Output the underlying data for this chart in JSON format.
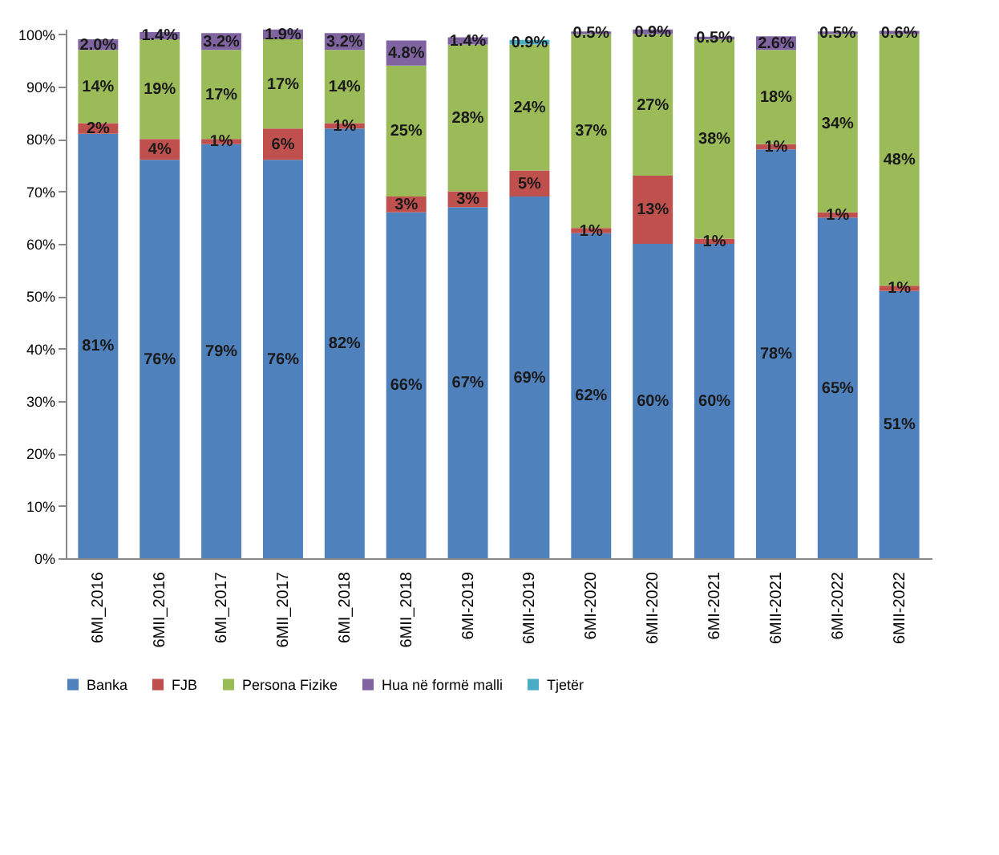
{
  "chart_data": {
    "type": "bar",
    "stacked": true,
    "categories": [
      "6MI_2016",
      "6MII_2016",
      "6MI_2017",
      "6MII_2017",
      "6MI_2018",
      "6MII_2018",
      "6MI-2019",
      "6MII-2019",
      "6MI-2020",
      "6MII-2020",
      "6MI-2021",
      "6MII-2021",
      "6MI-2022",
      "6MII-2022"
    ],
    "series": [
      {
        "name": "Banka",
        "color": "#4f81bd",
        "values": [
          81,
          76,
          79,
          76,
          82,
          66,
          67,
          69,
          62,
          60,
          60,
          78,
          65,
          51
        ],
        "value_labels": [
          "81%",
          "76%",
          "79%",
          "76%",
          "82%",
          "66%",
          "67%",
          "69%",
          "62%",
          "60%",
          "60%",
          "78%",
          "65%",
          "51%"
        ]
      },
      {
        "name": "FJB",
        "color": "#c0504d",
        "values": [
          2,
          4,
          1,
          6,
          1,
          3,
          3,
          5,
          1,
          13,
          1,
          1,
          1,
          1
        ],
        "value_labels": [
          "2%",
          "4%",
          "1%",
          "6%",
          "1%",
          "3%",
          "3%",
          "5%",
          "1%",
          "13%",
          "1%",
          "1%",
          "1%",
          "1%"
        ]
      },
      {
        "name": "Persona Fizike",
        "color": "#9bbb59",
        "values": [
          14,
          19,
          17,
          17,
          14,
          25,
          28,
          24,
          37,
          27,
          38,
          18,
          34,
          48
        ],
        "value_labels": [
          "14%",
          "19%",
          "17%",
          "17%",
          "14%",
          "25%",
          "28%",
          "24%",
          "37%",
          "27%",
          "38%",
          "18%",
          "34%",
          "48%"
        ]
      },
      {
        "name": "Hua në formë malli",
        "color": "#8064a2",
        "values": [
          2.0,
          1.4,
          3.2,
          1.9,
          3.2,
          4.8,
          1.4,
          null,
          0.5,
          0.9,
          0.5,
          2.6,
          0.5,
          0.6
        ],
        "value_labels": [
          "2.0%",
          "1.4%",
          "3.2%",
          "1.9%",
          "3.2%",
          "4.8%",
          "1.4%",
          null,
          "0.5%",
          "0.9%",
          "0.5%",
          "2.6%",
          "0.5%",
          "0.6%"
        ]
      },
      {
        "name": "Tjetër",
        "color": "#4bacc6",
        "values": [
          null,
          null,
          null,
          null,
          null,
          null,
          null,
          0.9,
          null,
          null,
          null,
          null,
          null,
          null
        ],
        "value_labels": [
          null,
          null,
          null,
          null,
          null,
          null,
          null,
          "0.9%",
          null,
          null,
          null,
          null,
          null,
          null
        ]
      }
    ],
    "ylim": [
      0,
      101
    ],
    "yticks": [
      {
        "value": 0,
        "label": "0%"
      },
      {
        "value": 10,
        "label": "10%"
      },
      {
        "value": 20,
        "label": "20%"
      },
      {
        "value": 30,
        "label": "30%"
      },
      {
        "value": 40,
        "label": "40%"
      },
      {
        "value": 50,
        "label": "50%"
      },
      {
        "value": 60,
        "label": "60%"
      },
      {
        "value": 70,
        "label": "70%"
      },
      {
        "value": 80,
        "label": "80%"
      },
      {
        "value": 90,
        "label": "90%"
      },
      {
        "value": 100,
        "label": "100%"
      }
    ],
    "grid": false,
    "legend": "bottom"
  }
}
